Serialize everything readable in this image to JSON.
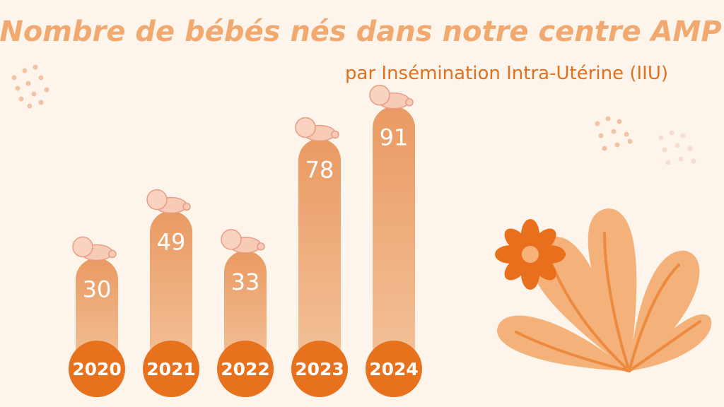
{
  "chart_data": {
    "type": "bar",
    "title": "Nombre de bébés nés dans notre centre AMP",
    "subtitle": "par Insémination Intra-Utérine (IIU)",
    "categories": [
      "2020",
      "2021",
      "2022",
      "2023",
      "2024"
    ],
    "values": [
      30,
      49,
      33,
      78,
      91
    ],
    "color": "#eb9d65"
  }
}
